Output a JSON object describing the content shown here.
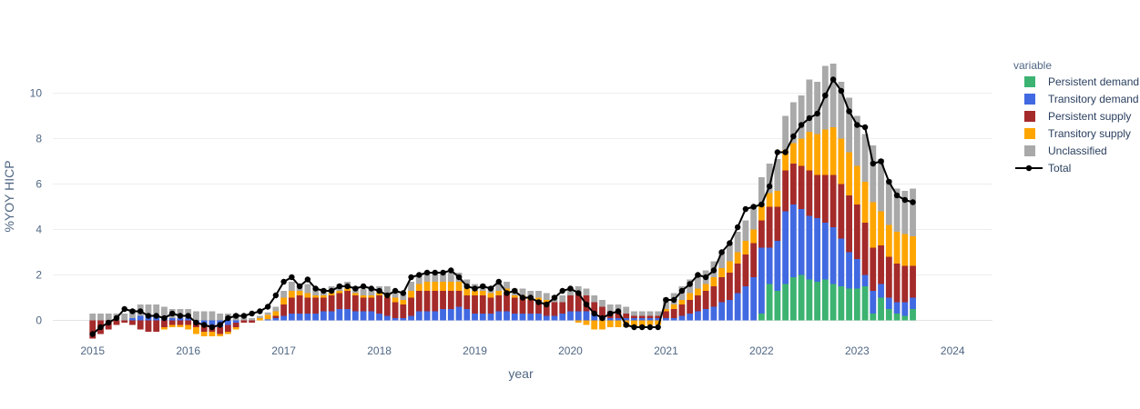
{
  "chart_data": {
    "type": "bar",
    "barmode": "relative",
    "xlabel": "year",
    "ylabel": "%YOY HICP",
    "x_ticks": [
      "2015",
      "2016",
      "2017",
      "2018",
      "2019",
      "2020",
      "2021",
      "2022",
      "2023",
      "2024"
    ],
    "x_range": [
      "2014-08",
      "2024-06"
    ],
    "y_ticks": [
      0,
      2,
      4,
      6,
      8,
      10
    ],
    "ylim": [
      -1.5,
      12.3
    ],
    "grid": true,
    "legend": {
      "title": "variable",
      "placement": "right",
      "entries": [
        "Persistent demand",
        "Transitory demand",
        "Persistent supply",
        "Transitory supply",
        "Unclassified",
        "Total"
      ]
    },
    "colors": {
      "Persistent demand": "#3cb371",
      "Transitory demand": "#4169e1",
      "Persistent supply": "#a52a2a",
      "Transitory supply": "#ffa500",
      "Unclassified": "#a9a9a9",
      "Total": "#000000"
    },
    "x": [
      "2015-01",
      "2015-02",
      "2015-03",
      "2015-04",
      "2015-05",
      "2015-06",
      "2015-07",
      "2015-08",
      "2015-09",
      "2015-10",
      "2015-11",
      "2015-12",
      "2016-01",
      "2016-02",
      "2016-03",
      "2016-04",
      "2016-05",
      "2016-06",
      "2016-07",
      "2016-08",
      "2016-09",
      "2016-10",
      "2016-11",
      "2016-12",
      "2017-01",
      "2017-02",
      "2017-03",
      "2017-04",
      "2017-05",
      "2017-06",
      "2017-07",
      "2017-08",
      "2017-09",
      "2017-10",
      "2017-11",
      "2017-12",
      "2018-01",
      "2018-02",
      "2018-03",
      "2018-04",
      "2018-05",
      "2018-06",
      "2018-07",
      "2018-08",
      "2018-09",
      "2018-10",
      "2018-11",
      "2018-12",
      "2019-01",
      "2019-02",
      "2019-03",
      "2019-04",
      "2019-05",
      "2019-06",
      "2019-07",
      "2019-08",
      "2019-09",
      "2019-10",
      "2019-11",
      "2019-12",
      "2020-01",
      "2020-02",
      "2020-03",
      "2020-04",
      "2020-05",
      "2020-06",
      "2020-07",
      "2020-08",
      "2020-09",
      "2020-10",
      "2020-11",
      "2020-12",
      "2021-01",
      "2021-02",
      "2021-03",
      "2021-04",
      "2021-05",
      "2021-06",
      "2021-07",
      "2021-08",
      "2021-09",
      "2021-10",
      "2021-11",
      "2021-12",
      "2022-01",
      "2022-02",
      "2022-03",
      "2022-04",
      "2022-05",
      "2022-06",
      "2022-07",
      "2022-08",
      "2022-09",
      "2022-10",
      "2022-11",
      "2022-12",
      "2023-01",
      "2023-02",
      "2023-03",
      "2023-04",
      "2023-05",
      "2023-06",
      "2023-07",
      "2023-08"
    ],
    "series": [
      {
        "name": "Persistent demand",
        "values": [
          0,
          0,
          0,
          0,
          0,
          0,
          0,
          0,
          0,
          0,
          0,
          0,
          0,
          0,
          0,
          0,
          0,
          0,
          0,
          0,
          0,
          0,
          0,
          0,
          0,
          0,
          0,
          0,
          0,
          0,
          0,
          0,
          0,
          0,
          0,
          0,
          0,
          0,
          0,
          0,
          0,
          0,
          0,
          0,
          0,
          0,
          0,
          0,
          0,
          0,
          0,
          0,
          0,
          0,
          0,
          0,
          0,
          0,
          0,
          0,
          0,
          0,
          0,
          0,
          0,
          0,
          0,
          0,
          0,
          0,
          0,
          0,
          0,
          0,
          0,
          0,
          0,
          0,
          0,
          0,
          0,
          0,
          0,
          0,
          0.3,
          1.6,
          1.3,
          1.6,
          1.9,
          2.0,
          1.8,
          1.7,
          1.8,
          1.6,
          1.5,
          1.4,
          1.4,
          1.5,
          0.3,
          1.0,
          0.5,
          0.3,
          0.2,
          0.5
        ]
      },
      {
        "name": "Transitory demand",
        "values": [
          0,
          0,
          0,
          0,
          0,
          0.1,
          0.2,
          0.2,
          0.2,
          0.1,
          0.1,
          0.1,
          0.1,
          -0.1,
          -0.2,
          -0.2,
          -0.3,
          -0.2,
          -0.1,
          0,
          0,
          0,
          0.05,
          0.1,
          0.2,
          0.3,
          0.3,
          0.3,
          0.3,
          0.4,
          0.4,
          0.5,
          0.5,
          0.4,
          0.4,
          0.4,
          0.3,
          0.2,
          0.1,
          0.1,
          0.2,
          0.4,
          0.4,
          0.4,
          0.5,
          0.5,
          0.6,
          0.5,
          0.3,
          0.3,
          0.3,
          0.4,
          0.4,
          0.3,
          0.3,
          0.3,
          0.3,
          0.2,
          0.2,
          0.3,
          0.4,
          0.4,
          0.4,
          0.3,
          0.2,
          0.1,
          0.1,
          0.1,
          0.1,
          0.1,
          0.1,
          0.1,
          0.1,
          0.1,
          0.2,
          0.3,
          0.4,
          0.5,
          0.6,
          0.8,
          0.9,
          1.2,
          1.5,
          1.9,
          2.9,
          1.6,
          2.2,
          3.2,
          3.2,
          2.9,
          2.8,
          2.8,
          2.5,
          2.5,
          2.1,
          1.6,
          1.3,
          0.5,
          1.0,
          0.6,
          0.5,
          0.5,
          0.6,
          0.5
        ]
      },
      {
        "name": "Persistent supply",
        "values": [
          -0.8,
          -0.6,
          -0.4,
          -0.2,
          -0.1,
          -0.2,
          -0.4,
          -0.5,
          -0.5,
          -0.3,
          -0.2,
          -0.2,
          -0.2,
          -0.2,
          -0.3,
          -0.3,
          -0.3,
          -0.3,
          -0.2,
          -0.1,
          -0.1,
          0,
          0,
          0.1,
          0.5,
          0.7,
          0.8,
          0.7,
          0.7,
          0.6,
          0.7,
          0.7,
          0.8,
          0.7,
          0.6,
          0.6,
          0.8,
          0.8,
          0.7,
          0.6,
          0.8,
          0.9,
          0.9,
          0.9,
          0.8,
          0.8,
          0.7,
          0.6,
          0.8,
          0.8,
          0.7,
          0.7,
          0.8,
          0.7,
          0.7,
          0.6,
          0.6,
          0.6,
          0.6,
          0.5,
          0.7,
          0.8,
          0.7,
          0.5,
          0.4,
          0.3,
          0.3,
          0.2,
          0.1,
          0.1,
          0.1,
          0.1,
          0.3,
          0.4,
          0.5,
          0.6,
          0.7,
          0.8,
          0.9,
          1.1,
          1.2,
          1.3,
          1.4,
          1.5,
          1.2,
          1.8,
          1.5,
          1.8,
          1.8,
          1.9,
          2.0,
          1.9,
          2.1,
          2.3,
          2.4,
          2.5,
          2.4,
          2.3,
          1.9,
          1.7,
          1.8,
          1.7,
          1.6,
          1.4
        ]
      },
      {
        "name": "Transitory supply",
        "values": [
          0,
          0,
          0,
          0,
          0,
          0,
          0,
          0,
          0,
          -0.1,
          -0.1,
          -0.1,
          -0.2,
          -0.3,
          -0.2,
          -0.2,
          -0.1,
          -0.1,
          -0.1,
          0,
          0,
          0.1,
          0.2,
          0.2,
          0.3,
          0.3,
          0.2,
          0.2,
          0.1,
          0.1,
          0.1,
          0.1,
          0.1,
          0.1,
          0.1,
          0.1,
          0.1,
          0.1,
          0.2,
          0.2,
          0.3,
          0.3,
          0.4,
          0.4,
          0.4,
          0.4,
          0.4,
          0.3,
          0.2,
          0.2,
          0.2,
          0.2,
          0.2,
          0.1,
          0.1,
          0.1,
          0.1,
          0.1,
          0,
          0,
          0,
          -0.1,
          -0.2,
          -0.4,
          -0.4,
          -0.3,
          -0.3,
          -0.3,
          -0.3,
          -0.3,
          -0.2,
          -0.2,
          0.1,
          0.2,
          0.2,
          0.3,
          0.3,
          0.3,
          0.4,
          0.4,
          0.5,
          0.5,
          0.6,
          0.6,
          0.7,
          0.6,
          0.7,
          0.9,
          0.9,
          1.2,
          1.7,
          1.8,
          2.0,
          2.1,
          2.0,
          1.9,
          1.7,
          1.8,
          2.0,
          1.5,
          1.4,
          1.4,
          1.4,
          1.3
        ]
      },
      {
        "name": "Unclassified",
        "values": [
          0.3,
          0.3,
          0.3,
          0.3,
          0.3,
          0.4,
          0.5,
          0.5,
          0.5,
          0.5,
          0.4,
          0.4,
          0.4,
          0.4,
          0.4,
          0.4,
          0.3,
          0.3,
          0.3,
          0.2,
          0.1,
          0.1,
          0.1,
          0.2,
          0.3,
          0.4,
          0.3,
          0.4,
          0.3,
          0.3,
          0.3,
          0.3,
          0.3,
          0.3,
          0.3,
          0.3,
          0.3,
          0.4,
          0.3,
          0.3,
          0.4,
          0.4,
          0.4,
          0.4,
          0.4,
          0.4,
          0.4,
          0.4,
          0.3,
          0.3,
          0.3,
          0.3,
          0.3,
          0.3,
          0.3,
          0.3,
          0.3,
          0.3,
          0.3,
          0.3,
          0.3,
          0.3,
          0.3,
          0.3,
          0.3,
          0.3,
          0.3,
          0.3,
          0.2,
          0.2,
          0.2,
          0.2,
          0.5,
          0.5,
          0.6,
          0.6,
          0.6,
          0.6,
          0.7,
          0.7,
          0.8,
          0.9,
          0.9,
          1.0,
          1.2,
          1.3,
          1.4,
          1.5,
          1.8,
          1.9,
          2.3,
          2.3,
          2.8,
          2.8,
          2.5,
          2.4,
          2.2,
          2.1,
          2.5,
          2.3,
          2.0,
          1.9,
          1.9,
          2.1
        ]
      },
      {
        "name": "Total",
        "values": [
          -0.6,
          -0.3,
          -0.1,
          0.1,
          0.5,
          0.4,
          0.4,
          0.2,
          0.2,
          0.1,
          0.3,
          0.2,
          0.2,
          -0.1,
          -0.2,
          -0.3,
          -0.2,
          0.1,
          0.2,
          0.2,
          0.3,
          0.4,
          0.6,
          1.1,
          1.7,
          1.9,
          1.5,
          1.8,
          1.4,
          1.3,
          1.3,
          1.5,
          1.5,
          1.4,
          1.5,
          1.4,
          1.3,
          1.1,
          1.3,
          1.2,
          1.9,
          2.0,
          2.1,
          2.1,
          2.1,
          2.2,
          1.9,
          1.5,
          1.4,
          1.5,
          1.4,
          1.7,
          1.2,
          1.3,
          1.0,
          1.0,
          0.8,
          0.7,
          1.0,
          1.3,
          1.4,
          1.2,
          0.7,
          0.3,
          0.1,
          0.3,
          0.4,
          -0.2,
          -0.3,
          -0.3,
          -0.3,
          -0.3,
          0.9,
          0.9,
          1.3,
          1.6,
          2.0,
          1.9,
          2.2,
          3.0,
          3.4,
          4.1,
          4.9,
          5.0,
          5.1,
          5.9,
          7.4,
          7.4,
          8.1,
          8.6,
          8.9,
          9.1,
          9.9,
          10.6,
          10.1,
          9.2,
          8.6,
          8.5,
          6.9,
          7.0,
          6.1,
          5.5,
          5.3,
          5.2
        ]
      }
    ]
  }
}
